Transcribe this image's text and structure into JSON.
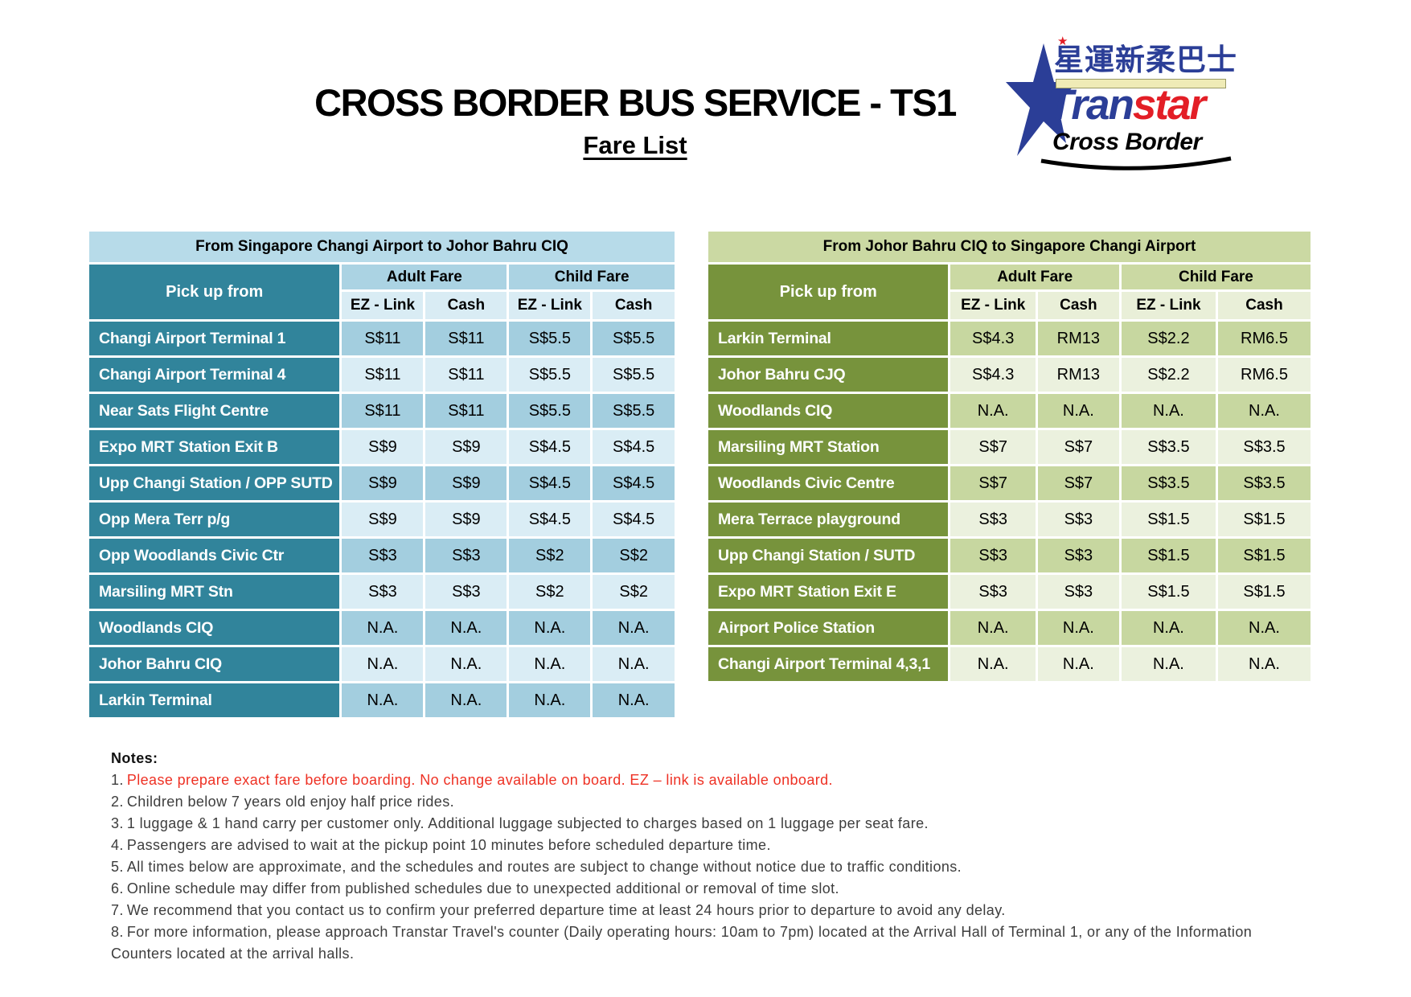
{
  "header": {
    "title": "CROSS BORDER BUS SERVICE - TS1",
    "subtitle": "Fare List"
  },
  "logo": {
    "chinese_text": "星運新柔巴士",
    "red_star_glyph": "★",
    "brand_blue_part": "Tran",
    "brand_red_part": "star",
    "tagline": "Cross Border"
  },
  "tables": {
    "left": {
      "title": "From Singapore Changi Airport to Johor Bahru CIQ",
      "pick_up": "Pick up from",
      "groups": [
        "Adult Fare",
        "Child Fare"
      ],
      "subs": [
        "EZ - Link",
        "Cash",
        "EZ - Link",
        "Cash"
      ],
      "rows": [
        {
          "label": "Changi Airport Terminal 1",
          "values": [
            "S$11",
            "S$11",
            "S$5.5",
            "S$5.5"
          ]
        },
        {
          "label": "Changi Airport Terminal 4",
          "values": [
            "S$11",
            "S$11",
            "S$5.5",
            "S$5.5"
          ]
        },
        {
          "label": "Near Sats Flight Centre",
          "values": [
            "S$11",
            "S$11",
            "S$5.5",
            "S$5.5"
          ]
        },
        {
          "label": "Expo MRT Station Exit B",
          "values": [
            "S$9",
            "S$9",
            "S$4.5",
            "S$4.5"
          ]
        },
        {
          "label": "Upp Changi Station / OPP SUTD",
          "values": [
            "S$9",
            "S$9",
            "S$4.5",
            "S$4.5"
          ]
        },
        {
          "label": "Opp Mera Terr p/g",
          "values": [
            "S$9",
            "S$9",
            "S$4.5",
            "S$4.5"
          ]
        },
        {
          "label": "Opp Woodlands Civic Ctr",
          "values": [
            "S$3",
            "S$3",
            "S$2",
            "S$2"
          ]
        },
        {
          "label": "Marsiling MRT Stn",
          "values": [
            "S$3",
            "S$3",
            "S$2",
            "S$2"
          ]
        },
        {
          "label": "Woodlands CIQ",
          "values": [
            "N.A.",
            "N.A.",
            "N.A.",
            "N.A."
          ]
        },
        {
          "label": "Johor Bahru  CIQ",
          "values": [
            "N.A.",
            "N.A.",
            "N.A.",
            "N.A."
          ]
        },
        {
          "label": "Larkin Terminal",
          "values": [
            "N.A.",
            "N.A.",
            "N.A.",
            "N.A."
          ]
        }
      ]
    },
    "right": {
      "title": "From Johor Bahru CIQ to Singapore Changi Airport",
      "pick_up": "Pick up from",
      "groups": [
        "Adult Fare",
        "Child Fare"
      ],
      "subs": [
        "EZ - Link",
        "Cash",
        "EZ - Link",
        "Cash"
      ],
      "rows": [
        {
          "label": "Larkin Terminal",
          "values": [
            "S$4.3",
            "RM13",
            "S$2.2",
            "RM6.5"
          ]
        },
        {
          "label": "Johor Bahru CJQ",
          "values": [
            "S$4.3",
            "RM13",
            "S$2.2",
            "RM6.5"
          ]
        },
        {
          "label": "Woodlands CIQ",
          "values": [
            "N.A.",
            "N.A.",
            "N.A.",
            "N.A."
          ]
        },
        {
          "label": "Marsiling MRT Station",
          "values": [
            "S$7",
            "S$7",
            "S$3.5",
            "S$3.5"
          ]
        },
        {
          "label": "Woodlands Civic Centre",
          "values": [
            "S$7",
            "S$7",
            "S$3.5",
            "S$3.5"
          ]
        },
        {
          "label": "Mera Terrace playground",
          "values": [
            "S$3",
            "S$3",
            "S$1.5",
            "S$1.5"
          ]
        },
        {
          "label": "Upp Changi Station / SUTD",
          "values": [
            "S$3",
            "S$3",
            "S$1.5",
            "S$1.5"
          ]
        },
        {
          "label": "Expo MRT Station Exit E",
          "values": [
            "S$3",
            "S$3",
            "S$1.5",
            "S$1.5"
          ]
        },
        {
          "label": "Airport Police Station",
          "values": [
            "N.A.",
            "N.A.",
            "N.A.",
            "N.A."
          ]
        },
        {
          "label": "Changi Airport Terminal 4,3,1",
          "values": [
            "N.A.",
            "N.A.",
            "N.A.",
            "N.A."
          ]
        }
      ]
    }
  },
  "notes": {
    "heading": "Notes:",
    "items": [
      {
        "num": "1.",
        "red": true,
        "text": "Please prepare exact fare before boarding. No change available on board. EZ – link is available onboard."
      },
      {
        "num": "2.",
        "red": false,
        "text": "Children below 7 years old enjoy half price rides."
      },
      {
        "num": "3.",
        "red": false,
        "text": "1 luggage & 1 hand carry per customer only. Additional luggage subjected to charges based on 1 luggage per seat fare."
      },
      {
        "num": "4.",
        "red": false,
        "text": "Passengers are advised to wait at the pickup point 10 minutes before scheduled departure time."
      },
      {
        "num": "5.",
        "red": false,
        "text": "All times below are approximate, and the schedules and routes are subject to change without notice due to traffic conditions."
      },
      {
        "num": "6.",
        "red": false,
        "text": "Online schedule may differ from published schedules due to unexpected additional or removal of time slot."
      },
      {
        "num": "7.",
        "red": false,
        "text": "We recommend that you contact us to confirm your preferred departure time at least 24 hours prior to departure to avoid any delay."
      },
      {
        "num": "8.",
        "red": false,
        "text": "For more information, please approach Transtar Travel's counter (Daily operating hours: 10am to 7pm) located at the Arrival Hall of Terminal 1, or any of the Information Counters located at the arrival halls."
      }
    ]
  },
  "theme": {
    "teal": "#31849B",
    "blue-title": "#B7DBE9",
    "blue-head": "#ABD3E3",
    "blue-sub": "#D9ECF4",
    "blue-row-a": "#A3CEDF",
    "blue-row-b": "#DAEDF5",
    "olive": "#77933C",
    "green-title": "#CBD9A3",
    "green-head": "#CBD9A3",
    "green-sub": "#E9EFD8",
    "green-row-a": "#C7D7A0",
    "green-row-b": "#EBF1DE",
    "note-red": "#EE3124",
    "brand-blue": "#2B3E97",
    "brand-red": "#E31E26",
    "bar-yellow": "#EFEBB6"
  }
}
